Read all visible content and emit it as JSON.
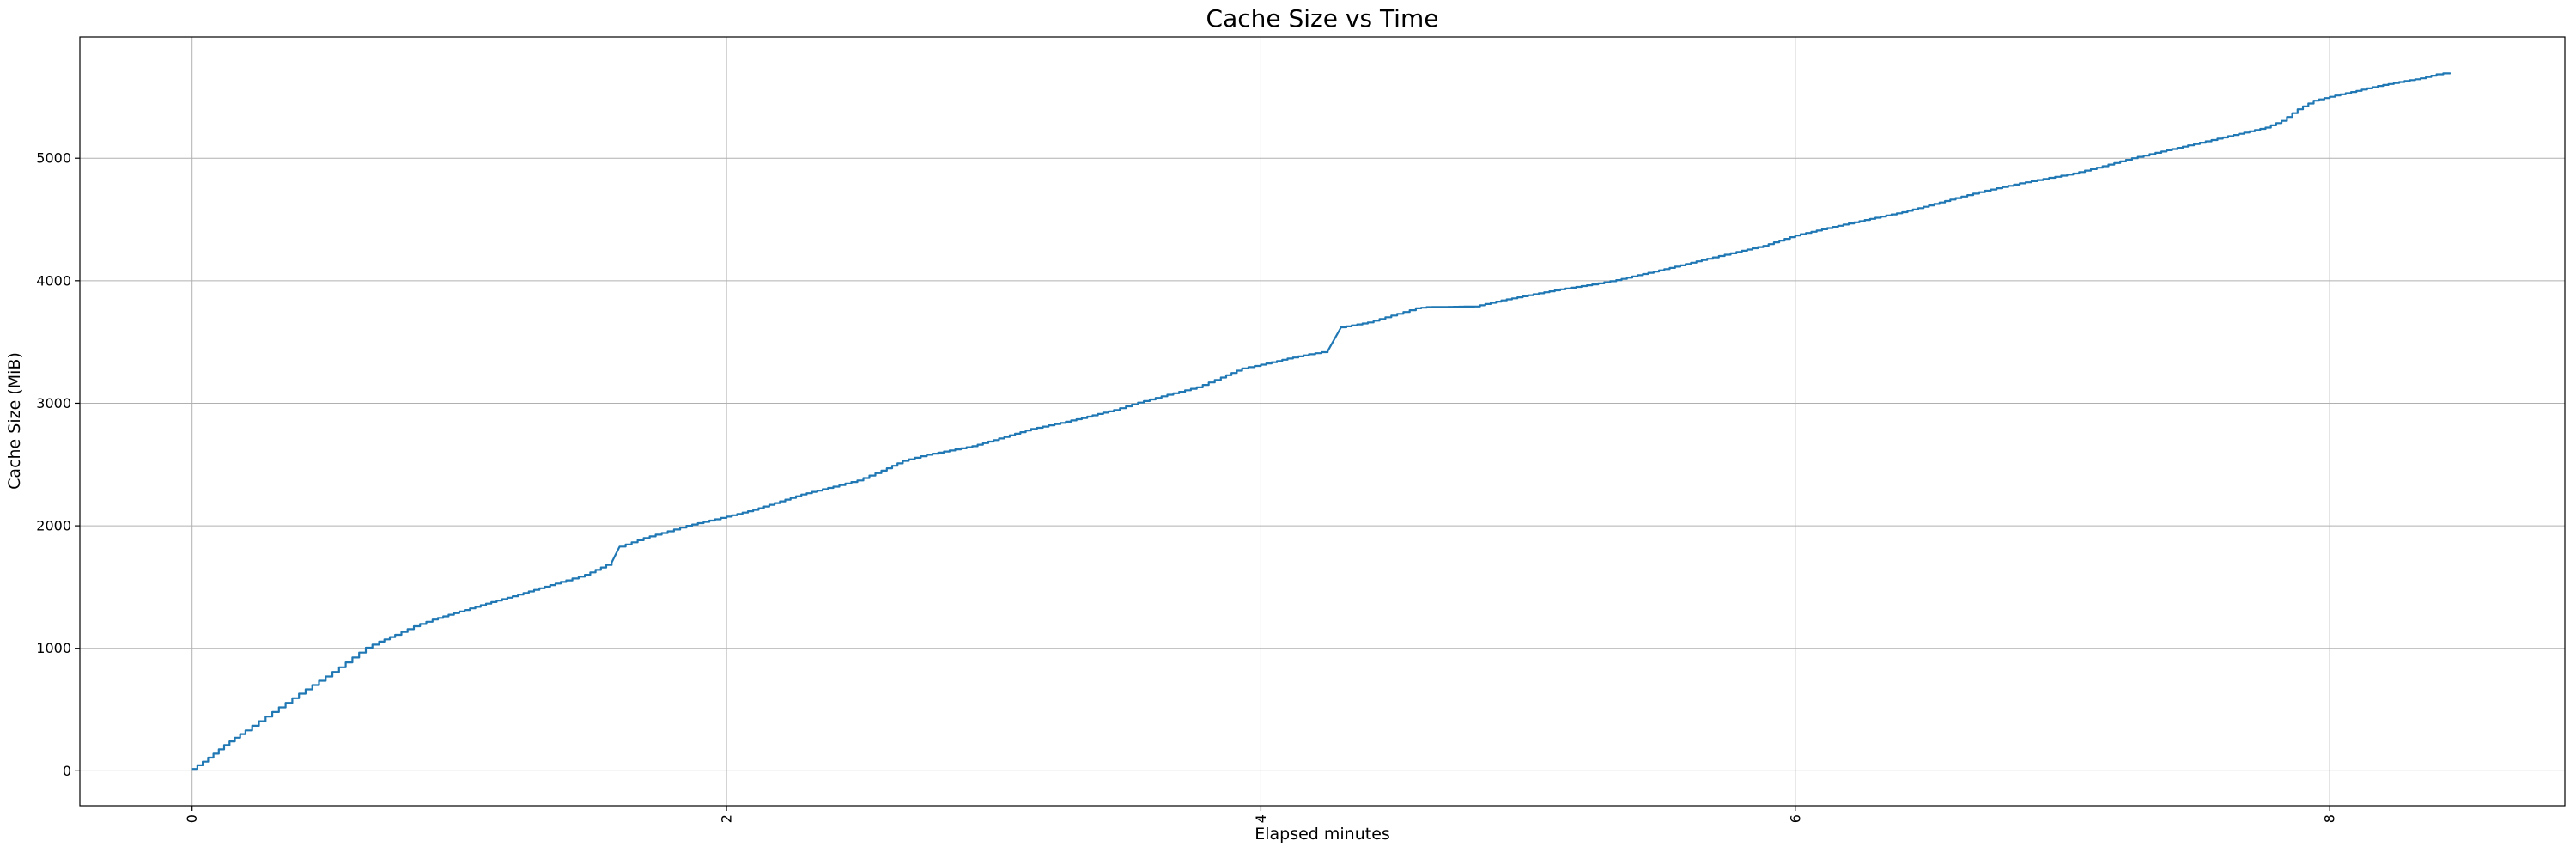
{
  "figure": {
    "background": "#ffffff"
  },
  "chart_data": {
    "type": "line",
    "title": "Cache Size vs Time",
    "xlabel": "Elapsed minutes",
    "ylabel": "Cache Size (MiB)",
    "x_ticks": [
      0,
      2,
      4,
      6,
      8
    ],
    "y_ticks": [
      0,
      1000,
      2000,
      3000,
      4000,
      5000
    ],
    "xlim": [
      -0.42,
      8.88
    ],
    "ylim": [
      -285,
      5990
    ],
    "grid": true,
    "legend": "none",
    "x_tick_rotation": 90,
    "line_color": "#1f77b4",
    "grid_color": "#b0b0b0",
    "spine_color": "#000000",
    "step_interval_minutes": 0.021,
    "series": [
      {
        "name": "cache_size_mib",
        "points": [
          [
            0.0,
            15
          ],
          [
            0.04,
            75
          ],
          [
            0.08,
            140
          ],
          [
            0.12,
            210
          ],
          [
            0.16,
            270
          ],
          [
            0.2,
            330
          ],
          [
            0.25,
            405
          ],
          [
            0.3,
            480
          ],
          [
            0.35,
            555
          ],
          [
            0.4,
            630
          ],
          [
            0.45,
            700
          ],
          [
            0.5,
            770
          ],
          [
            0.55,
            845
          ],
          [
            0.6,
            925
          ],
          [
            0.65,
            1005
          ],
          [
            0.7,
            1055
          ],
          [
            0.76,
            1110
          ],
          [
            0.83,
            1180
          ],
          [
            0.9,
            1235
          ],
          [
            1.0,
            1300
          ],
          [
            1.1,
            1365
          ],
          [
            1.2,
            1425
          ],
          [
            1.3,
            1490
          ],
          [
            1.4,
            1555
          ],
          [
            1.47,
            1600
          ],
          [
            1.57,
            1700
          ],
          [
            1.6,
            1830
          ],
          [
            1.69,
            1900
          ],
          [
            1.78,
            1955
          ],
          [
            1.85,
            2000
          ],
          [
            2.0,
            2075
          ],
          [
            2.1,
            2130
          ],
          [
            2.2,
            2200
          ],
          [
            2.28,
            2255
          ],
          [
            2.4,
            2320
          ],
          [
            2.49,
            2370
          ],
          [
            2.58,
            2450
          ],
          [
            2.66,
            2530
          ],
          [
            2.75,
            2580
          ],
          [
            2.92,
            2650
          ],
          [
            3.0,
            2700
          ],
          [
            3.14,
            2790
          ],
          [
            3.25,
            2840
          ],
          [
            3.33,
            2880
          ],
          [
            3.45,
            2945
          ],
          [
            3.54,
            3005
          ],
          [
            3.65,
            3070
          ],
          [
            3.76,
            3130
          ],
          [
            3.85,
            3210
          ],
          [
            3.93,
            3285
          ],
          [
            4.0,
            3315
          ],
          [
            4.1,
            3365
          ],
          [
            4.18,
            3400
          ],
          [
            4.25,
            3425
          ],
          [
            4.3,
            3620
          ],
          [
            4.4,
            3660
          ],
          [
            4.51,
            3730
          ],
          [
            4.58,
            3775
          ],
          [
            4.62,
            3785
          ],
          [
            4.8,
            3790
          ],
          [
            4.9,
            3840
          ],
          [
            5.02,
            3890
          ],
          [
            5.12,
            3930
          ],
          [
            5.24,
            3970
          ],
          [
            5.33,
            4005
          ],
          [
            5.45,
            4065
          ],
          [
            5.55,
            4115
          ],
          [
            5.67,
            4180
          ],
          [
            5.78,
            4235
          ],
          [
            5.88,
            4285
          ],
          [
            6.0,
            4370
          ],
          [
            6.14,
            4440
          ],
          [
            6.28,
            4505
          ],
          [
            6.4,
            4560
          ],
          [
            6.5,
            4615
          ],
          [
            6.6,
            4675
          ],
          [
            6.71,
            4735
          ],
          [
            6.84,
            4795
          ],
          [
            6.95,
            4840
          ],
          [
            7.04,
            4875
          ],
          [
            7.15,
            4935
          ],
          [
            7.26,
            5000
          ],
          [
            7.37,
            5055
          ],
          [
            7.47,
            5105
          ],
          [
            7.58,
            5160
          ],
          [
            7.68,
            5210
          ],
          [
            7.76,
            5250
          ],
          [
            7.82,
            5305
          ],
          [
            7.88,
            5400
          ],
          [
            7.94,
            5470
          ],
          [
            8.02,
            5512
          ],
          [
            8.1,
            5550
          ],
          [
            8.18,
            5590
          ],
          [
            8.26,
            5622
          ],
          [
            8.34,
            5652
          ],
          [
            8.4,
            5685
          ],
          [
            8.45,
            5700
          ]
        ]
      }
    ]
  }
}
